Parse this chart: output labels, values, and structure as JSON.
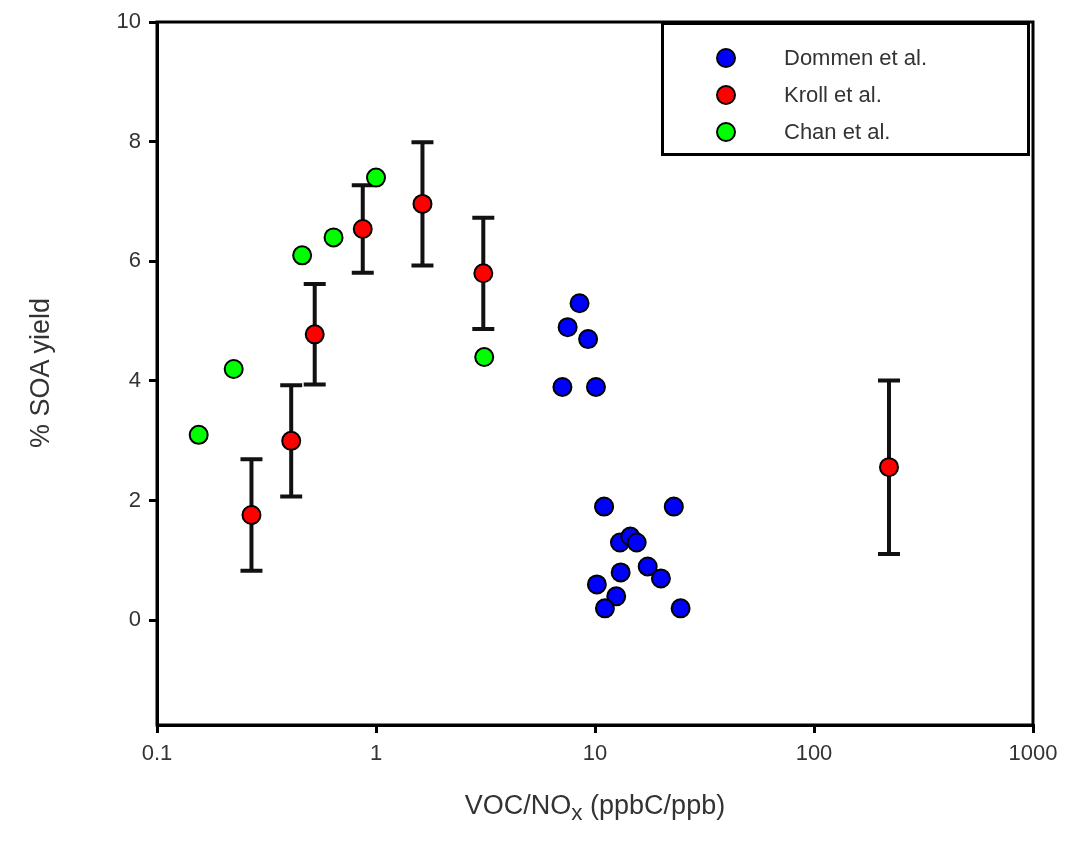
{
  "chart_data": {
    "type": "scatter",
    "xlabel": "VOC/NO$_{x}$ (ppbC/ppb)",
    "ylabel": "% SOA yield",
    "log": "x",
    "xlim": [
      0.1,
      1000
    ],
    "xticks": [
      0.1,
      1,
      10,
      100,
      1000
    ],
    "ylim": [
      -1.75,
      10
    ],
    "yticks": [
      0,
      2,
      4,
      6,
      8,
      10
    ],
    "grid": false,
    "legend": "top right",
    "marker": "circle",
    "series": [
      {
        "name": "Dommen et al.",
        "color": "#0000ff",
        "x": [
          8.5,
          7.5,
          9.3,
          7.1,
          10.1,
          11.0,
          22.9,
          13.0,
          14.5,
          15.5,
          13.1,
          10.2,
          12.5,
          11.1,
          17.4,
          20.0,
          24.6
        ],
        "values": [
          5.3,
          4.9,
          4.7,
          3.9,
          3.9,
          1.9,
          1.9,
          1.3,
          1.4,
          1.3,
          0.8,
          0.6,
          0.4,
          0.2,
          0.9,
          0.7,
          0.2
        ]
      },
      {
        "name": "Kroll et al.",
        "color": "#ff0000",
        "x": [
          0.27,
          0.41,
          0.525,
          0.87,
          1.63,
          3.09,
          220
        ],
        "values": [
          1.76,
          3.0,
          4.78,
          6.54,
          6.96,
          5.8,
          2.56
        ],
        "errors": [
          0.93,
          0.93,
          0.84,
          0.73,
          1.03,
          0.93,
          1.45
        ]
      },
      {
        "name": "Chan et al.",
        "color": "#00ff00",
        "x": [
          0.155,
          0.224,
          0.46,
          0.64,
          1.0,
          3.12
        ],
        "values": [
          3.1,
          4.2,
          6.1,
          6.4,
          7.4,
          4.4
        ]
      }
    ]
  }
}
